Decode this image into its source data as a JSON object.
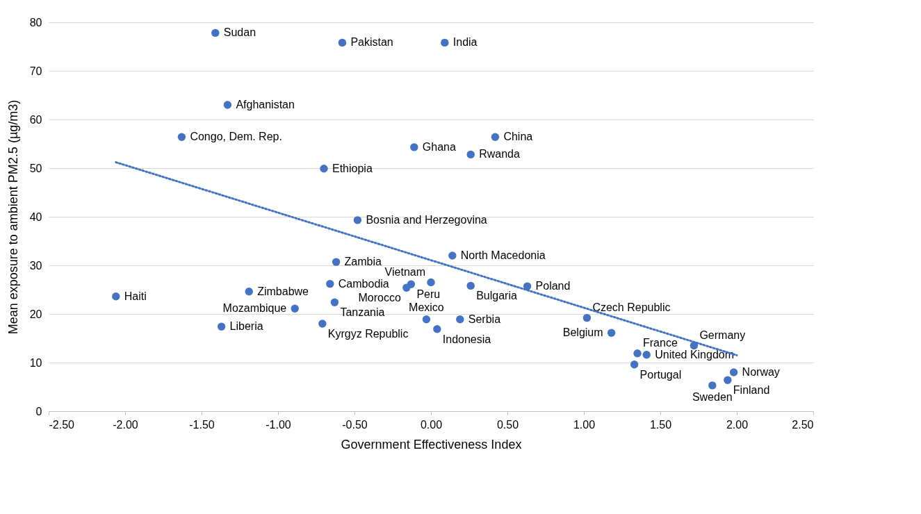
{
  "chart_data": {
    "type": "scatter",
    "xlabel": "Government Effectiveness Index",
    "ylabel": "Mean exposure to ambient PM2.5 (µg/m3)",
    "xlim": [
      -2.5,
      2.5
    ],
    "xticks": [
      {
        "value": -2.5,
        "label": "-2.50"
      },
      {
        "value": -2,
        "label": "-2.00"
      },
      {
        "value": -1.5,
        "label": "-1.50"
      },
      {
        "value": -1,
        "label": "-1.00"
      },
      {
        "value": -0.5,
        "label": "-0.50"
      },
      {
        "value": 0,
        "label": "0.00"
      },
      {
        "value": 0.5,
        "label": "0.50"
      },
      {
        "value": 1,
        "label": "1.00"
      },
      {
        "value": 1.5,
        "label": "1.50"
      },
      {
        "value": 2,
        "label": "2.00"
      },
      {
        "value": 2.5,
        "label": "2.50"
      }
    ],
    "ylim": [
      0,
      80
    ],
    "yticks": [
      0,
      10,
      20,
      30,
      40,
      50,
      60,
      70,
      80
    ],
    "grid": "y",
    "series": [
      {
        "color": "#4472c4",
        "marker": "circle",
        "x": [
          -1.41,
          -0.58,
          0.09,
          -1.33,
          -1.63,
          -0.11,
          0.42,
          0.26,
          -0.7,
          -0.48,
          0.14,
          -0.62,
          -2.06,
          -1.19,
          -0.66,
          -0.13,
          -0.16,
          0.0,
          0.26,
          0.63,
          -0.63,
          -0.89,
          -1.37,
          -0.71,
          -0.03,
          0.04,
          0.19,
          1.02,
          1.18,
          1.72,
          1.35,
          1.41,
          1.33,
          1.98,
          1.94,
          1.84
        ],
        "values": [
          77.8,
          75.8,
          75.8,
          63.0,
          56.4,
          54.3,
          56.4,
          52.8,
          49.9,
          39.3,
          32.0,
          30.7,
          23.6,
          24.6,
          26.2,
          26.1,
          25.4,
          26.5,
          25.8,
          25.7,
          22.4,
          21.1,
          17.4,
          18.0,
          18.9,
          16.9,
          18.9,
          19.2,
          16.1,
          13.5,
          11.9,
          11.6,
          9.6,
          8.0,
          6.4,
          5.3
        ],
        "value_labels": [
          "Sudan",
          "Pakistan",
          "India",
          "Afghanistan",
          "Congo, Dem. Rep.",
          "Ghana",
          "China",
          "Rwanda",
          "Ethiopia",
          "Bosnia and Herzegovina",
          "North Macedonia",
          "Zambia",
          "Haiti",
          "Zimbabwe",
          "Cambodia",
          "Peru",
          "Morocco",
          "Vietnam",
          "Bulgaria",
          "Poland",
          "Tanzania",
          "Mozambique",
          "Liberia",
          "Kyrgyz Republic",
          "Mexico",
          "Indonesia",
          "Serbia",
          "Czech Republic",
          "Belgium",
          "Germany",
          "France",
          "United Kingdom",
          "Portugal",
          "Norway",
          "Finland",
          "Sweden"
        ]
      },
      {
        "type": "line",
        "color": "#4472c4",
        "line_style": "dotted",
        "x": [
          -2.06,
          2.0
        ],
        "values": [
          51.2,
          11.5
        ]
      }
    ]
  }
}
